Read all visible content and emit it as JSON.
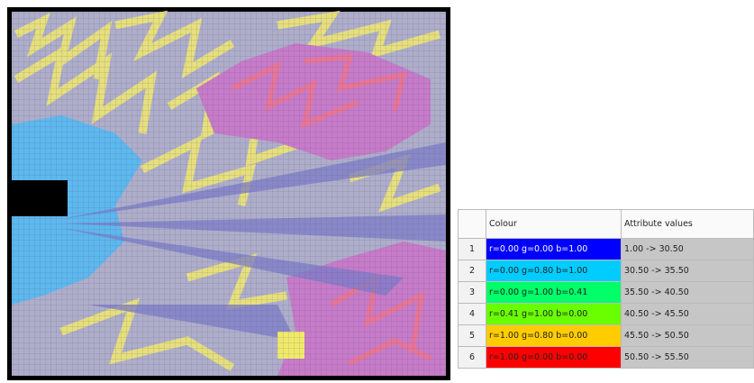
{
  "table": {
    "headers": [
      "Colour",
      "Attribute values"
    ],
    "rows": [
      {
        "index": "1",
        "colour": "r=0.00 g=0.00 b=1.00",
        "color": "#0000ff",
        "values": "1.00 -> 30.50"
      },
      {
        "index": "2",
        "colour": "r=0.00 g=0.80 b=1.00",
        "color": "#00ccff",
        "values": "30.50 -> 35.50"
      },
      {
        "index": "3",
        "colour": "r=0.00 g=1.00 b=0.41",
        "color": "#00ff69",
        "values": "35.50 -> 40.50"
      },
      {
        "index": "4",
        "colour": "r=0.41 g=1.00 b=0.00",
        "color": "#69ff00",
        "values": "40.50 -> 45.50"
      },
      {
        "index": "5",
        "colour": "r=1.00 g=0.80 b=0.00",
        "color": "#ffcc00",
        "values": "45.50 -> 50.50"
      },
      {
        "index": "6",
        "colour": "r=1.00 g=0.00 b=0.00",
        "color": "#ff0000",
        "values": "50.50 -> 55.50"
      }
    ]
  }
}
